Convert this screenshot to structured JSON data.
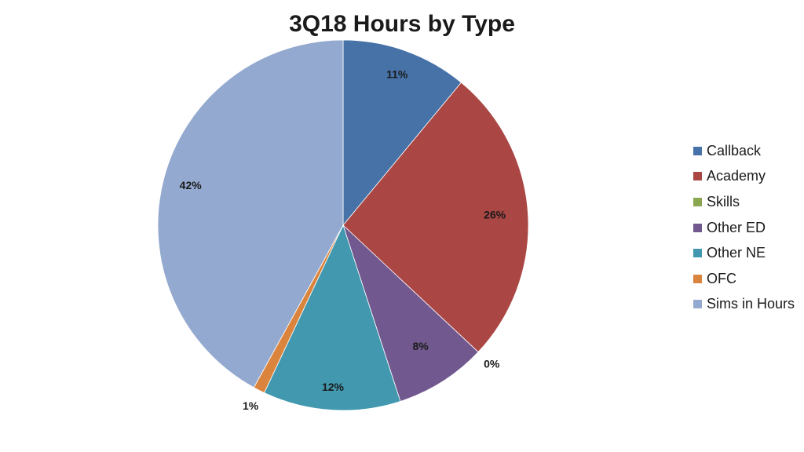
{
  "chart_data": {
    "type": "pie",
    "title": "3Q18 Hours by Type",
    "legend_position": "right",
    "slices": [
      {
        "name": "Callback",
        "value": 11,
        "label": "11%",
        "color": "#4672A8"
      },
      {
        "name": "Academy",
        "value": 26,
        "label": "26%",
        "color": "#AA4744"
      },
      {
        "name": "Skills",
        "value": 0,
        "label": "0%",
        "color": "#8AA64E"
      },
      {
        "name": "Other ED",
        "value": 8,
        "label": "8%",
        "color": "#71588F"
      },
      {
        "name": "Other NE",
        "value": 12,
        "label": "12%",
        "color": "#4198AF"
      },
      {
        "name": "OFC",
        "value": 1,
        "label": "1%",
        "color": "#DB843D"
      },
      {
        "name": "Sims in Hours",
        "value": 42,
        "label": "42%",
        "color": "#93A9CF"
      }
    ]
  }
}
